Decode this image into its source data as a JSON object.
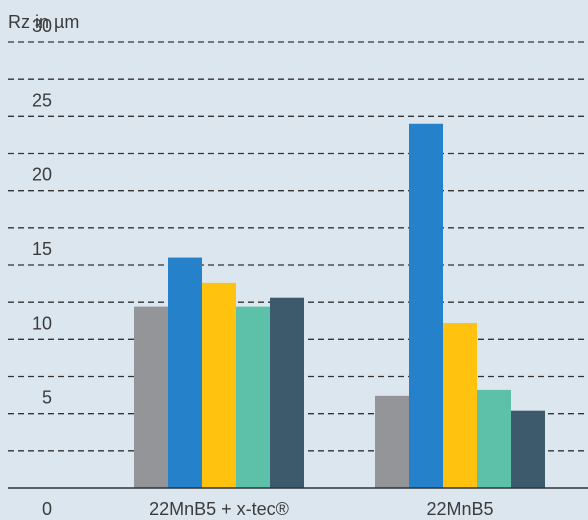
{
  "chart_data": {
    "type": "bar",
    "ylabel": "Rz in µm",
    "ylim": [
      0,
      30
    ],
    "yticks": [
      0,
      5,
      10,
      15,
      20,
      25,
      30
    ],
    "grid": true,
    "categories": [
      "22MnB5 + x-tec®",
      "22MnB5"
    ],
    "series": [
      {
        "color": "#939598",
        "values": [
          12.2,
          6.2
        ]
      },
      {
        "color": "#2581c9",
        "values": [
          15.5,
          24.5
        ]
      },
      {
        "color": "#ffc20e",
        "values": [
          13.8,
          11.1
        ]
      },
      {
        "color": "#5cc1a8",
        "values": [
          12.2,
          6.6
        ]
      },
      {
        "color": "#3c5a6b",
        "values": [
          12.8,
          5.2
        ]
      }
    ],
    "colors": {
      "background": "#dce6ee",
      "grid": "#333333",
      "axis": "#333333",
      "text": "#3c3c3c"
    }
  }
}
